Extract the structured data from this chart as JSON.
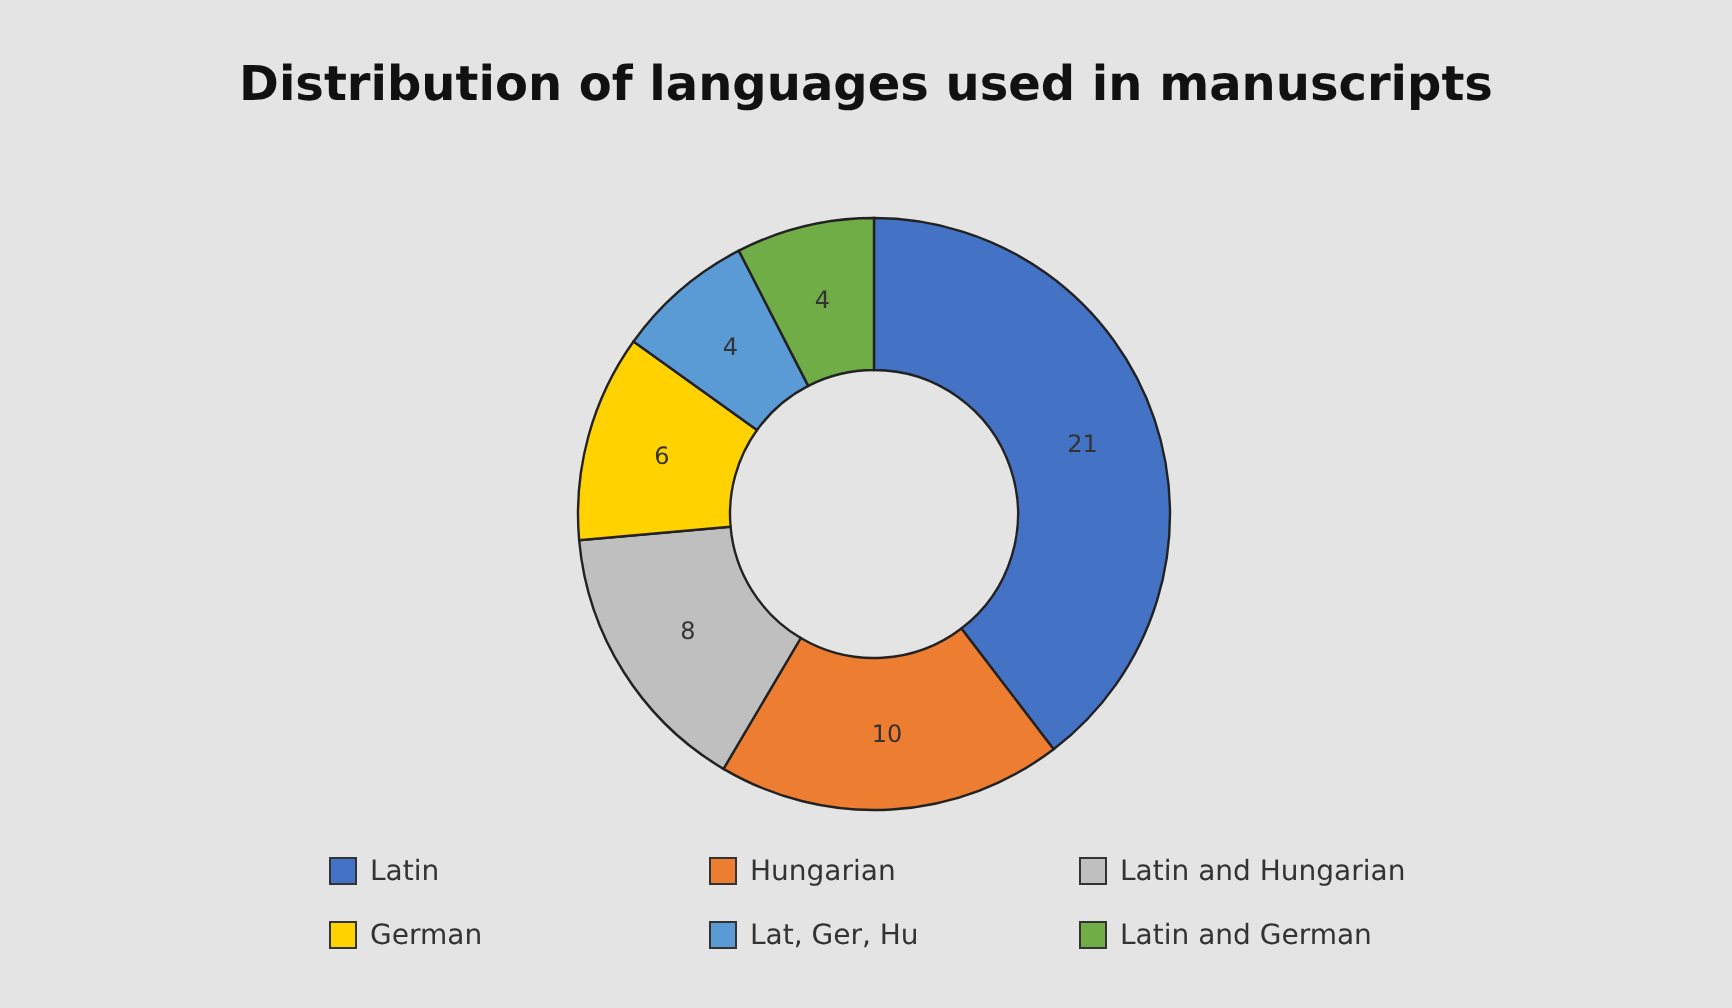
{
  "chart_data": {
    "type": "donut",
    "title": "Distribution of languages used in manuscripts",
    "categories": [
      "Latin",
      "Hungarian",
      "Latin and Hungarian",
      "German",
      "Lat, Ger, Hu",
      "Latin and German"
    ],
    "values": [
      21,
      10,
      8,
      6,
      4,
      4
    ],
    "colors": [
      "#4472c4",
      "#ed7d31",
      "#bfbfbf",
      "#ffd200",
      "#5b9bd5",
      "#70ad47"
    ],
    "data_labels": true,
    "legend": "bottom"
  }
}
